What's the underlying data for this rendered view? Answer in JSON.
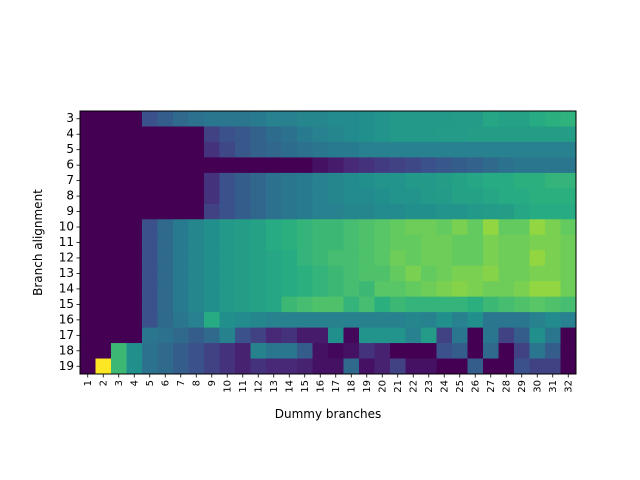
{
  "chart_data": {
    "type": "heatmap",
    "title": "",
    "xlabel": "Dummy branches",
    "ylabel": "Branch alignment",
    "x": [
      1,
      2,
      3,
      4,
      5,
      6,
      7,
      8,
      9,
      10,
      11,
      12,
      13,
      14,
      15,
      16,
      17,
      18,
      19,
      20,
      21,
      22,
      23,
      24,
      25,
      26,
      27,
      28,
      29,
      30,
      31,
      32
    ],
    "y": [
      3,
      4,
      5,
      6,
      7,
      8,
      9,
      10,
      11,
      12,
      13,
      14,
      15,
      16,
      17,
      18,
      19
    ],
    "colormap": "viridis",
    "value_range": [
      0,
      1
    ],
    "values": [
      [
        0.0,
        0.0,
        0.0,
        0.0,
        0.25,
        0.3,
        0.35,
        0.38,
        0.4,
        0.4,
        0.4,
        0.42,
        0.44,
        0.44,
        0.46,
        0.46,
        0.48,
        0.48,
        0.5,
        0.52,
        0.54,
        0.54,
        0.54,
        0.54,
        0.55,
        0.55,
        0.6,
        0.58,
        0.58,
        0.62,
        0.64,
        0.65
      ],
      [
        0.0,
        0.0,
        0.0,
        0.0,
        0.0,
        0.0,
        0.0,
        0.0,
        0.2,
        0.25,
        0.28,
        0.32,
        0.36,
        0.38,
        0.42,
        0.44,
        0.46,
        0.48,
        0.5,
        0.52,
        0.54,
        0.54,
        0.54,
        0.55,
        0.55,
        0.56,
        0.56,
        0.56,
        0.56,
        0.56,
        0.56,
        0.56
      ],
      [
        0.0,
        0.0,
        0.0,
        0.0,
        0.0,
        0.0,
        0.0,
        0.0,
        0.15,
        0.22,
        0.28,
        0.32,
        0.34,
        0.36,
        0.38,
        0.4,
        0.42,
        0.42,
        0.44,
        0.44,
        0.44,
        0.44,
        0.44,
        0.44,
        0.44,
        0.44,
        0.44,
        0.44,
        0.44,
        0.44,
        0.44,
        0.44
      ],
      [
        0.0,
        0.0,
        0.0,
        0.0,
        0.0,
        0.0,
        0.0,
        0.0,
        0.0,
        0.0,
        0.0,
        0.0,
        0.0,
        0.0,
        0.0,
        0.05,
        0.08,
        0.12,
        0.15,
        0.18,
        0.2,
        0.22,
        0.25,
        0.28,
        0.3,
        0.32,
        0.35,
        0.38,
        0.4,
        0.4,
        0.4,
        0.4
      ],
      [
        0.0,
        0.0,
        0.0,
        0.0,
        0.0,
        0.0,
        0.0,
        0.0,
        0.15,
        0.25,
        0.3,
        0.34,
        0.38,
        0.4,
        0.42,
        0.44,
        0.46,
        0.48,
        0.5,
        0.52,
        0.52,
        0.54,
        0.54,
        0.56,
        0.58,
        0.6,
        0.62,
        0.62,
        0.64,
        0.64,
        0.66,
        0.66
      ],
      [
        0.0,
        0.0,
        0.0,
        0.0,
        0.0,
        0.0,
        0.0,
        0.0,
        0.15,
        0.25,
        0.3,
        0.34,
        0.38,
        0.4,
        0.42,
        0.44,
        0.46,
        0.48,
        0.48,
        0.5,
        0.52,
        0.52,
        0.54,
        0.55,
        0.58,
        0.58,
        0.6,
        0.62,
        0.62,
        0.64,
        0.64,
        0.64
      ],
      [
        0.0,
        0.0,
        0.0,
        0.0,
        0.0,
        0.0,
        0.0,
        0.0,
        0.2,
        0.25,
        0.3,
        0.34,
        0.38,
        0.4,
        0.42,
        0.44,
        0.44,
        0.46,
        0.46,
        0.48,
        0.48,
        0.5,
        0.5,
        0.52,
        0.52,
        0.54,
        0.55,
        0.56,
        0.6,
        0.62,
        0.62,
        0.62
      ],
      [
        0.0,
        0.0,
        0.0,
        0.0,
        0.25,
        0.35,
        0.42,
        0.46,
        0.5,
        0.54,
        0.56,
        0.58,
        0.62,
        0.64,
        0.66,
        0.68,
        0.68,
        0.7,
        0.72,
        0.74,
        0.76,
        0.78,
        0.78,
        0.76,
        0.8,
        0.76,
        0.84,
        0.76,
        0.76,
        0.84,
        0.8,
        0.76
      ],
      [
        0.0,
        0.0,
        0.0,
        0.0,
        0.25,
        0.35,
        0.42,
        0.46,
        0.5,
        0.54,
        0.56,
        0.58,
        0.62,
        0.64,
        0.66,
        0.68,
        0.68,
        0.7,
        0.72,
        0.74,
        0.76,
        0.76,
        0.78,
        0.78,
        0.76,
        0.76,
        0.8,
        0.78,
        0.78,
        0.8,
        0.8,
        0.78
      ],
      [
        0.0,
        0.0,
        0.0,
        0.0,
        0.25,
        0.35,
        0.42,
        0.46,
        0.5,
        0.54,
        0.56,
        0.58,
        0.6,
        0.62,
        0.66,
        0.68,
        0.7,
        0.7,
        0.72,
        0.74,
        0.78,
        0.76,
        0.78,
        0.78,
        0.76,
        0.76,
        0.8,
        0.78,
        0.78,
        0.84,
        0.8,
        0.78
      ],
      [
        0.0,
        0.0,
        0.0,
        0.0,
        0.25,
        0.35,
        0.42,
        0.46,
        0.5,
        0.54,
        0.56,
        0.58,
        0.6,
        0.62,
        0.64,
        0.66,
        0.68,
        0.7,
        0.72,
        0.72,
        0.76,
        0.8,
        0.76,
        0.78,
        0.8,
        0.8,
        0.82,
        0.78,
        0.78,
        0.8,
        0.8,
        0.78
      ],
      [
        0.0,
        0.0,
        0.0,
        0.0,
        0.25,
        0.35,
        0.42,
        0.46,
        0.5,
        0.54,
        0.56,
        0.58,
        0.6,
        0.62,
        0.64,
        0.66,
        0.68,
        0.7,
        0.68,
        0.74,
        0.74,
        0.76,
        0.78,
        0.8,
        0.82,
        0.8,
        0.78,
        0.78,
        0.8,
        0.84,
        0.84,
        0.78
      ],
      [
        0.0,
        0.0,
        0.0,
        0.0,
        0.25,
        0.35,
        0.42,
        0.46,
        0.5,
        0.54,
        0.56,
        0.58,
        0.6,
        0.68,
        0.7,
        0.72,
        0.72,
        0.66,
        0.7,
        0.64,
        0.68,
        0.66,
        0.66,
        0.66,
        0.66,
        0.64,
        0.68,
        0.7,
        0.72,
        0.74,
        0.72,
        0.7
      ],
      [
        0.0,
        0.0,
        0.0,
        0.0,
        0.25,
        0.35,
        0.4,
        0.44,
        0.62,
        0.5,
        0.48,
        0.46,
        0.44,
        0.44,
        0.44,
        0.44,
        0.44,
        0.44,
        0.44,
        0.44,
        0.44,
        0.46,
        0.44,
        0.5,
        0.44,
        0.5,
        0.4,
        0.4,
        0.4,
        0.44,
        0.48,
        0.44
      ],
      [
        0.0,
        0.0,
        0.0,
        0.0,
        0.4,
        0.38,
        0.35,
        0.3,
        0.35,
        0.45,
        0.25,
        0.2,
        0.12,
        0.15,
        0.08,
        0.08,
        0.5,
        0.02,
        0.52,
        0.52,
        0.52,
        0.44,
        0.55,
        0.2,
        0.4,
        0.0,
        0.4,
        0.2,
        0.3,
        0.5,
        0.4,
        0.0
      ],
      [
        0.0,
        0.0,
        0.68,
        0.5,
        0.38,
        0.35,
        0.3,
        0.25,
        0.2,
        0.15,
        0.1,
        0.45,
        0.4,
        0.4,
        0.3,
        0.05,
        0.02,
        0.05,
        0.15,
        0.1,
        0.0,
        0.0,
        0.0,
        0.25,
        0.3,
        0.0,
        0.35,
        0.0,
        0.2,
        0.4,
        0.3,
        0.0
      ],
      [
        0.0,
        1.0,
        0.68,
        0.5,
        0.38,
        0.35,
        0.3,
        0.25,
        0.2,
        0.15,
        0.1,
        0.15,
        0.12,
        0.12,
        0.1,
        0.05,
        0.05,
        0.35,
        0.05,
        0.1,
        0.2,
        0.05,
        0.05,
        0.0,
        0.0,
        0.3,
        0.0,
        0.0,
        0.25,
        0.2,
        0.2,
        0.0
      ]
    ]
  }
}
